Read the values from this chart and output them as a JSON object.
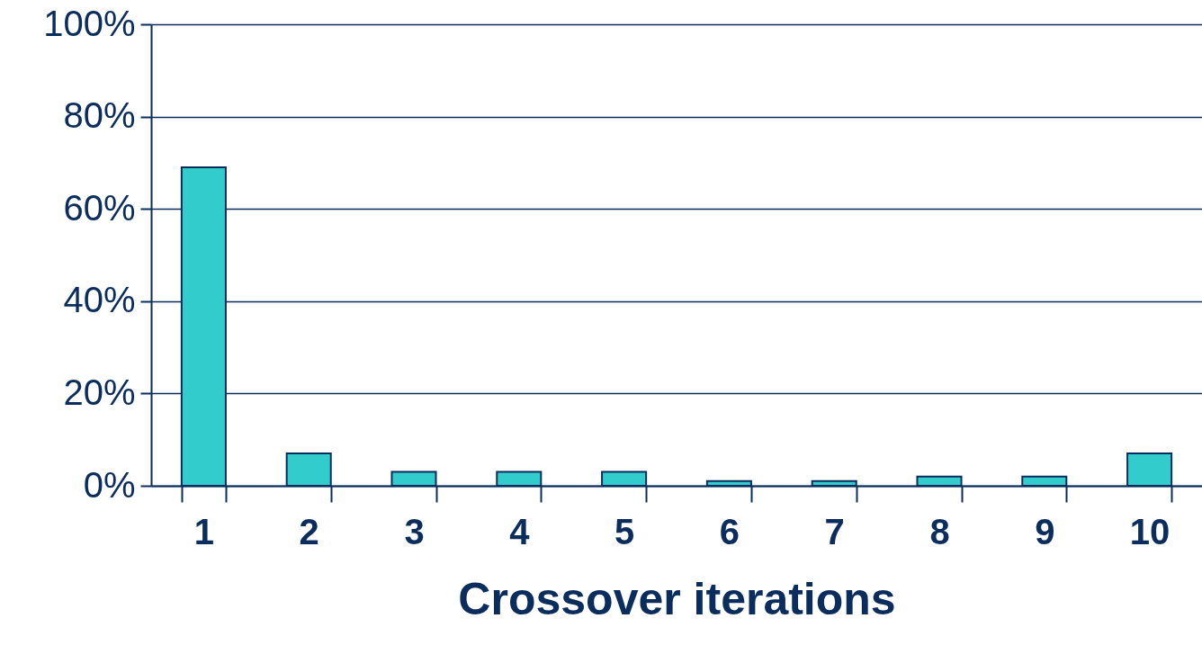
{
  "chart_data": {
    "type": "bar",
    "xlabel": "Crossover iterations",
    "categories": [
      "1",
      "2",
      "3",
      "4",
      "5",
      "6",
      "7",
      "8",
      "9",
      "10"
    ],
    "values": [
      69,
      7,
      3,
      3,
      3,
      1,
      1,
      2,
      2,
      7
    ],
    "color": "#33cccc",
    "ylim": [
      0,
      100
    ],
    "yticks": [
      {
        "value": 0,
        "label": "0%"
      },
      {
        "value": 20,
        "label": "20%"
      },
      {
        "value": 40,
        "label": "40%"
      },
      {
        "value": 60,
        "label": "60%"
      },
      {
        "value": 80,
        "label": "80%"
      },
      {
        "value": 100,
        "label": "100%"
      }
    ],
    "grid": "y"
  }
}
